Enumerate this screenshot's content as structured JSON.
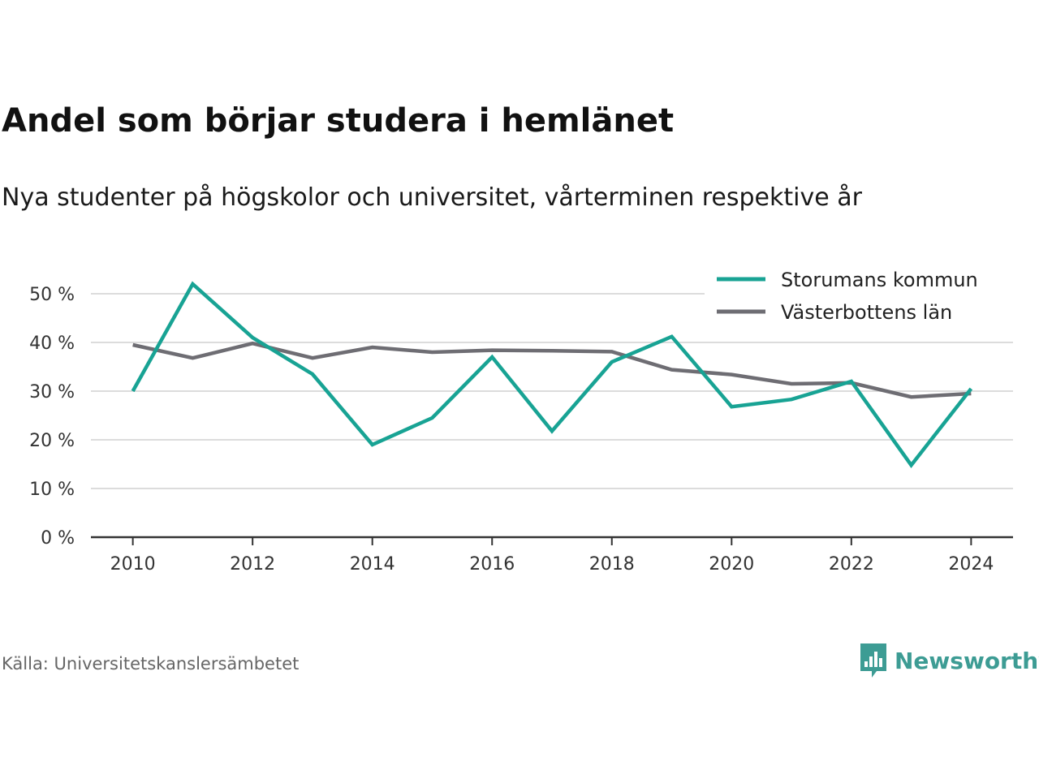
{
  "header": {
    "title": "Andel som börjar studera i hemlänet",
    "subtitle": "Nya studenter på högskolor och universitet, vårterminen respektive år"
  },
  "footer": {
    "source": "Källa: Universitetskanslersämbetet",
    "brand": "Newsworthy",
    "brand_icon": "newsworthy-logo-icon"
  },
  "colors": {
    "series_1": "#18a394",
    "series_2": "#6e6d73",
    "grid": "#dcdcdc",
    "axis": "#333333",
    "brand": "#3d9c94"
  },
  "chart_data": {
    "type": "line",
    "title": "Andel som börjar studera i hemlänet",
    "subtitle": "Nya studenter på högskolor och universitet, vårterminen respektive år",
    "x": [
      2010,
      2011,
      2012,
      2013,
      2014,
      2015,
      2016,
      2017,
      2018,
      2019,
      2020,
      2021,
      2022,
      2023,
      2024
    ],
    "x_ticks": [
      2010,
      2012,
      2014,
      2016,
      2018,
      2020,
      2022,
      2024
    ],
    "y_ticks": [
      0,
      10,
      20,
      30,
      40,
      50
    ],
    "y_tick_labels": [
      "0 %",
      "10 %",
      "20 %",
      "30 %",
      "40 %",
      "50 %"
    ],
    "xlim": [
      2009.3,
      2024.7
    ],
    "ylim": [
      0,
      50
    ],
    "grid": "horizontal",
    "legend_position": "top-right",
    "series": [
      {
        "name": "Storumans kommun",
        "color": "#18a394",
        "values": [
          30,
          52,
          41,
          33.5,
          19,
          24.5,
          37,
          21.8,
          36,
          41.2,
          26.8,
          28.3,
          32,
          14.8,
          30.5
        ]
      },
      {
        "name": "Västerbottens län",
        "color": "#6e6d73",
        "values": [
          39.5,
          36.8,
          39.8,
          36.8,
          39,
          38,
          38.4,
          38.3,
          38.1,
          34.4,
          33.4,
          31.5,
          31.7,
          28.8,
          29.5
        ]
      }
    ]
  }
}
